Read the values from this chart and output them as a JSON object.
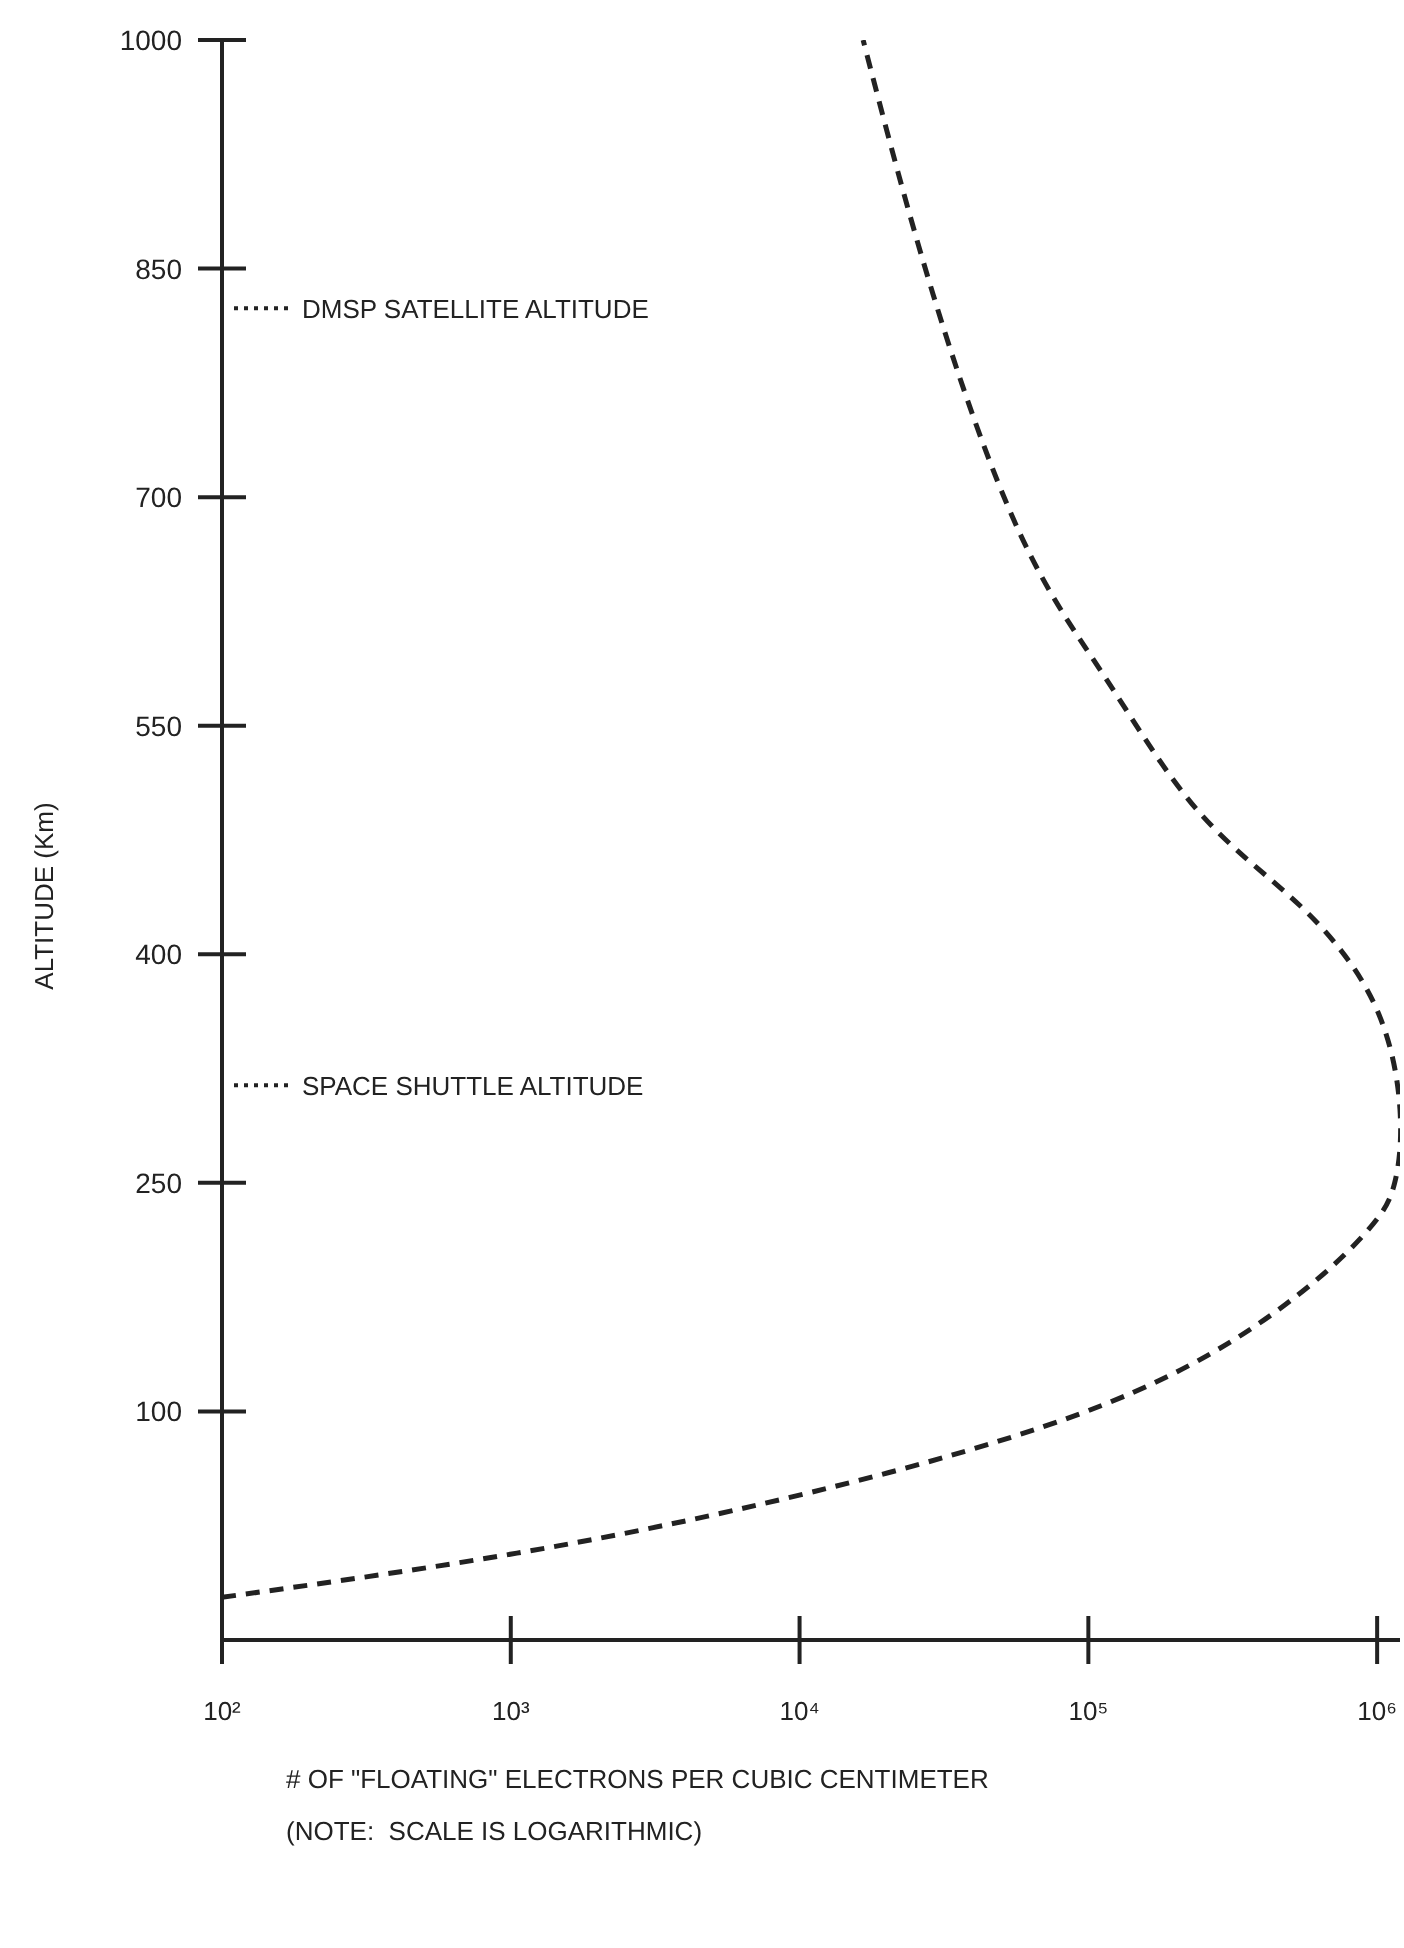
{
  "chart_data": {
    "type": "line",
    "xlabel": "# OF \"FLOATING\" ELECTRONS PER CUBIC CENTIMETER",
    "ylabel": "ALTITUDE (Km)",
    "annotations": [
      "(NOTE:  SCALE IS LOGARITHMIC)"
    ],
    "ref_lines": [
      {
        "axis": "y",
        "value": 824,
        "label": "DMSP SATELLITE ALTITUDE",
        "line_style": "dotted"
      },
      {
        "axis": "y",
        "value": 314,
        "label": "SPACE SHUTTLE ALTITUDE",
        "line_style": "dotted"
      }
    ],
    "log": "x",
    "xlim": [
      100,
      1200000
    ],
    "xticks": [
      {
        "value": 100,
        "label": "10²"
      },
      {
        "value": 1000,
        "label": "10³"
      },
      {
        "value": 10000,
        "label": "10⁴"
      },
      {
        "value": 100000,
        "label": "10⁵"
      },
      {
        "value": 1000000,
        "label": "10⁶"
      }
    ],
    "ylim": [
      -50,
      1000
    ],
    "yticks": [
      100,
      250,
      400,
      550,
      700,
      850,
      1000
    ],
    "marker": "none",
    "line_style": "dashed",
    "series": [
      {
        "color": "#222222",
        "x": [
          100,
          1050,
          11000,
          115000,
          480000,
          930000,
          1150000,
          1200000,
          980000,
          540000,
          240000,
          115000,
          58000,
          29000,
          16600
        ],
        "values": [
          -22,
          7,
          47,
          105,
          170,
          219,
          250,
          298,
          367,
          432,
          494,
          581,
          676,
          833,
          1000
        ]
      }
    ]
  }
}
